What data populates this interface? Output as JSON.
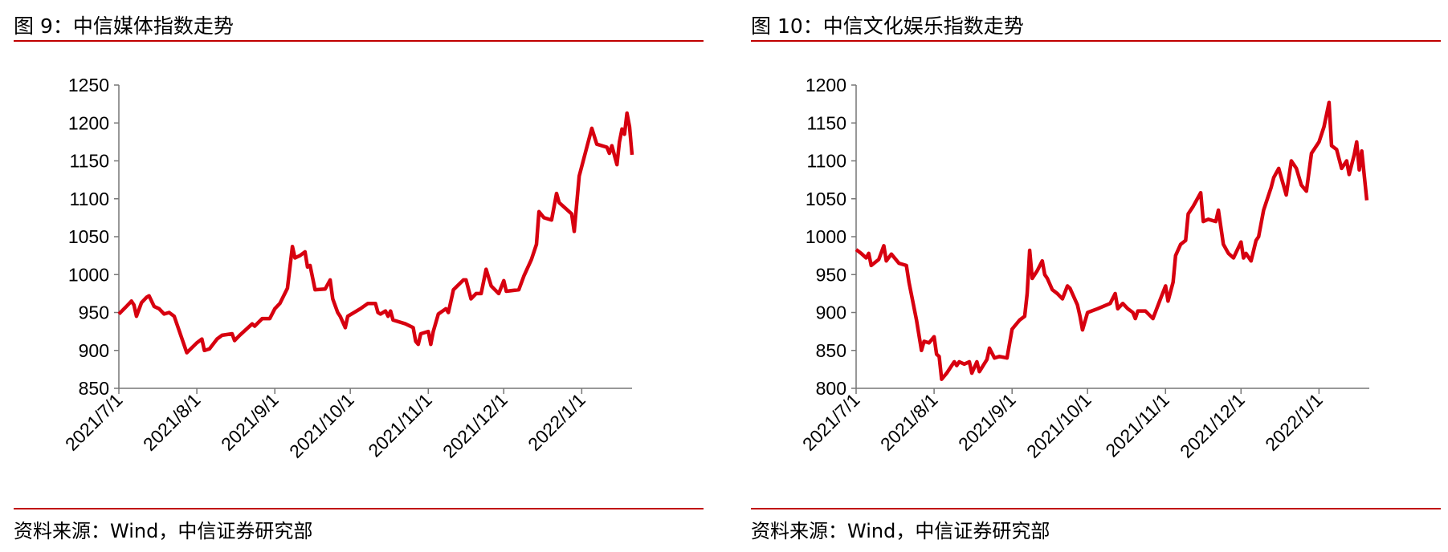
{
  "chart_data": [
    {
      "type": "line",
      "title": "图 9：中信媒体指数走势",
      "source": "资料来源：Wind，中信证券研究部",
      "color": "#d7000f",
      "x": [
        "2021/7/1",
        "2021/7/4",
        "2021/7/6",
        "2021/7/7",
        "2021/7/8",
        "2021/7/10",
        "2021/7/12",
        "2021/7/13",
        "2021/7/15",
        "2021/7/17",
        "2021/7/19",
        "2021/7/21",
        "2021/7/23",
        "2021/7/28",
        "2021/8/1",
        "2021/8/3",
        "2021/8/4",
        "2021/8/6",
        "2021/8/9",
        "2021/8/11",
        "2021/8/15",
        "2021/8/16",
        "2021/8/18",
        "2021/8/23",
        "2021/8/24",
        "2021/8/27",
        "2021/8/30",
        "2021/9/1",
        "2021/9/3",
        "2021/9/6",
        "2021/9/8",
        "2021/9/9",
        "2021/9/11",
        "2021/9/13",
        "2021/9/14",
        "2021/9/15",
        "2021/9/17",
        "2021/9/21",
        "2021/9/23",
        "2021/9/24",
        "2021/9/26",
        "2021/9/27",
        "2021/9/29",
        "2021/9/30",
        "2021/10/5",
        "2021/10/8",
        "2021/10/11",
        "2021/10/12",
        "2021/10/13",
        "2021/10/15",
        "2021/10/16",
        "2021/10/17",
        "2021/10/18",
        "2021/10/23",
        "2021/10/26",
        "2021/10/27",
        "2021/10/28",
        "2021/10/29",
        "2021/11/1",
        "2021/11/2",
        "2021/11/3",
        "2021/11/5",
        "2021/11/8",
        "2021/11/9",
        "2021/11/11",
        "2021/11/15",
        "2021/11/16",
        "2021/11/18",
        "2021/11/20",
        "2021/11/22",
        "2021/11/24",
        "2021/11/26",
        "2021/11/29",
        "2021/12/1",
        "2021/12/2",
        "2021/12/7",
        "2021/12/9",
        "2021/12/12",
        "2021/12/14",
        "2021/12/15",
        "2021/12/17",
        "2021/12/20",
        "2021/12/22",
        "2021/12/23",
        "2021/12/28",
        "2021/12/29",
        "2021/12/31",
        "2022/1/5",
        "2022/1/7",
        "2022/1/11",
        "2022/1/12",
        "2022/1/13",
        "2022/1/15",
        "2022/1/16",
        "2022/1/17",
        "2022/1/18",
        "2022/1/19",
        "2022/1/20",
        "2022/1/21"
      ],
      "values": [
        948,
        958,
        965,
        960,
        945,
        963,
        970,
        972,
        958,
        955,
        948,
        950,
        945,
        897,
        910,
        915,
        900,
        902,
        915,
        920,
        922,
        913,
        920,
        935,
        932,
        942,
        942,
        955,
        962,
        982,
        1037,
        1022,
        1025,
        1030,
        1010,
        1012,
        980,
        981,
        993,
        968,
        950,
        945,
        930,
        945,
        955,
        962,
        962,
        950,
        948,
        952,
        945,
        952,
        940,
        935,
        930,
        912,
        908,
        922,
        925,
        908,
        925,
        948,
        955,
        950,
        980,
        993,
        993,
        968,
        975,
        975,
        1007,
        985,
        975,
        992,
        978,
        980,
        998,
        1020,
        1040,
        1083,
        1075,
        1072,
        1107,
        1095,
        1080,
        1057,
        1130,
        1193,
        1172,
        1168,
        1160,
        1170,
        1145,
        1175,
        1192,
        1185,
        1213,
        1195,
        1158
      ],
      "xlim": [
        "2021/7/1",
        "2022/1/21"
      ],
      "xticks": [
        "2021/7/1",
        "2021/8/1",
        "2021/9/1",
        "2021/10/1",
        "2021/11/1",
        "2021/12/1",
        "2022/1/1"
      ],
      "ylim": [
        850,
        1250
      ],
      "yticks": [
        850,
        900,
        950,
        1000,
        1050,
        1100,
        1150,
        1200,
        1250
      ]
    },
    {
      "type": "line",
      "title": "图 10：中信文化娱乐指数走势",
      "source": "资料来源：Wind，中信证券研究部",
      "color": "#d7000f",
      "x": [
        "2021/7/1",
        "2021/7/3",
        "2021/7/5",
        "2021/7/6",
        "2021/7/7",
        "2021/7/10",
        "2021/7/12",
        "2021/7/13",
        "2021/7/15",
        "2021/7/18",
        "2021/7/21",
        "2021/7/22",
        "2021/7/25",
        "2021/7/27",
        "2021/7/28",
        "2021/7/30",
        "2021/8/1",
        "2021/8/2",
        "2021/8/3",
        "2021/8/4",
        "2021/8/6",
        "2021/8/9",
        "2021/8/10",
        "2021/8/11",
        "2021/8/13",
        "2021/8/15",
        "2021/8/16",
        "2021/8/18",
        "2021/8/19",
        "2021/8/22",
        "2021/8/23",
        "2021/8/25",
        "2021/8/27",
        "2021/8/30",
        "2021/9/1",
        "2021/9/2",
        "2021/9/4",
        "2021/9/6",
        "2021/9/7",
        "2021/9/8",
        "2021/9/9",
        "2021/9/11",
        "2021/9/13",
        "2021/9/14",
        "2021/9/15",
        "2021/9/17",
        "2021/9/19",
        "2021/9/21",
        "2021/9/23",
        "2021/9/24",
        "2021/9/27",
        "2021/9/28",
        "2021/9/29",
        "2021/10/1",
        "2021/10/5",
        "2021/10/10",
        "2021/10/12",
        "2021/10/13",
        "2021/10/15",
        "2021/10/17",
        "2021/10/19",
        "2021/10/20",
        "2021/10/21",
        "2021/10/24",
        "2021/10/27",
        "2021/10/30",
        "2021/11/1",
        "2021/11/2",
        "2021/11/4",
        "2021/11/5",
        "2021/11/7",
        "2021/11/9",
        "2021/11/10",
        "2021/11/12",
        "2021/11/15",
        "2021/11/16",
        "2021/11/18",
        "2021/11/21",
        "2021/11/22",
        "2021/11/24",
        "2021/11/26",
        "2021/11/28",
        "2021/12/1",
        "2021/12/2",
        "2021/12/3",
        "2021/12/5",
        "2021/12/7",
        "2021/12/8",
        "2021/12/10",
        "2021/12/13",
        "2021/12/14",
        "2021/12/16",
        "2021/12/19",
        "2021/12/21",
        "2021/12/23",
        "2021/12/25",
        "2021/12/27",
        "2021/12/29",
        "2022/1/1",
        "2022/1/3",
        "2022/1/5",
        "2022/1/6",
        "2022/1/8",
        "2022/1/10",
        "2022/1/12",
        "2022/1/13",
        "2022/1/15",
        "2022/1/16",
        "2022/1/17",
        "2022/1/18",
        "2022/1/20"
      ],
      "values": [
        983,
        978,
        972,
        978,
        962,
        970,
        988,
        968,
        977,
        965,
        962,
        940,
        890,
        850,
        862,
        860,
        868,
        845,
        842,
        812,
        820,
        835,
        830,
        835,
        832,
        835,
        820,
        835,
        822,
        838,
        853,
        840,
        842,
        840,
        878,
        882,
        890,
        895,
        925,
        982,
        945,
        955,
        968,
        950,
        945,
        930,
        925,
        918,
        935,
        932,
        910,
        895,
        877,
        900,
        905,
        912,
        925,
        905,
        912,
        905,
        900,
        892,
        902,
        902,
        892,
        918,
        935,
        915,
        940,
        975,
        990,
        995,
        1030,
        1040,
        1058,
        1020,
        1023,
        1020,
        1035,
        990,
        978,
        972,
        993,
        972,
        978,
        968,
        995,
        1000,
        1035,
        1065,
        1078,
        1090,
        1055,
        1100,
        1090,
        1068,
        1060,
        1110,
        1125,
        1145,
        1177,
        1120,
        1115,
        1090,
        1100,
        1082,
        1108,
        1125,
        1088,
        1113,
        1048
      ],
      "xlim": [
        "2021/7/1",
        "2022/1/21"
      ],
      "xticks": [
        "2021/7/1",
        "2021/8/1",
        "2021/9/1",
        "2021/10/1",
        "2021/11/1",
        "2021/12/1",
        "2022/1/1"
      ],
      "ylim": [
        800,
        1200
      ],
      "yticks": [
        800,
        850,
        900,
        950,
        1000,
        1050,
        1100,
        1150,
        1200
      ]
    }
  ]
}
